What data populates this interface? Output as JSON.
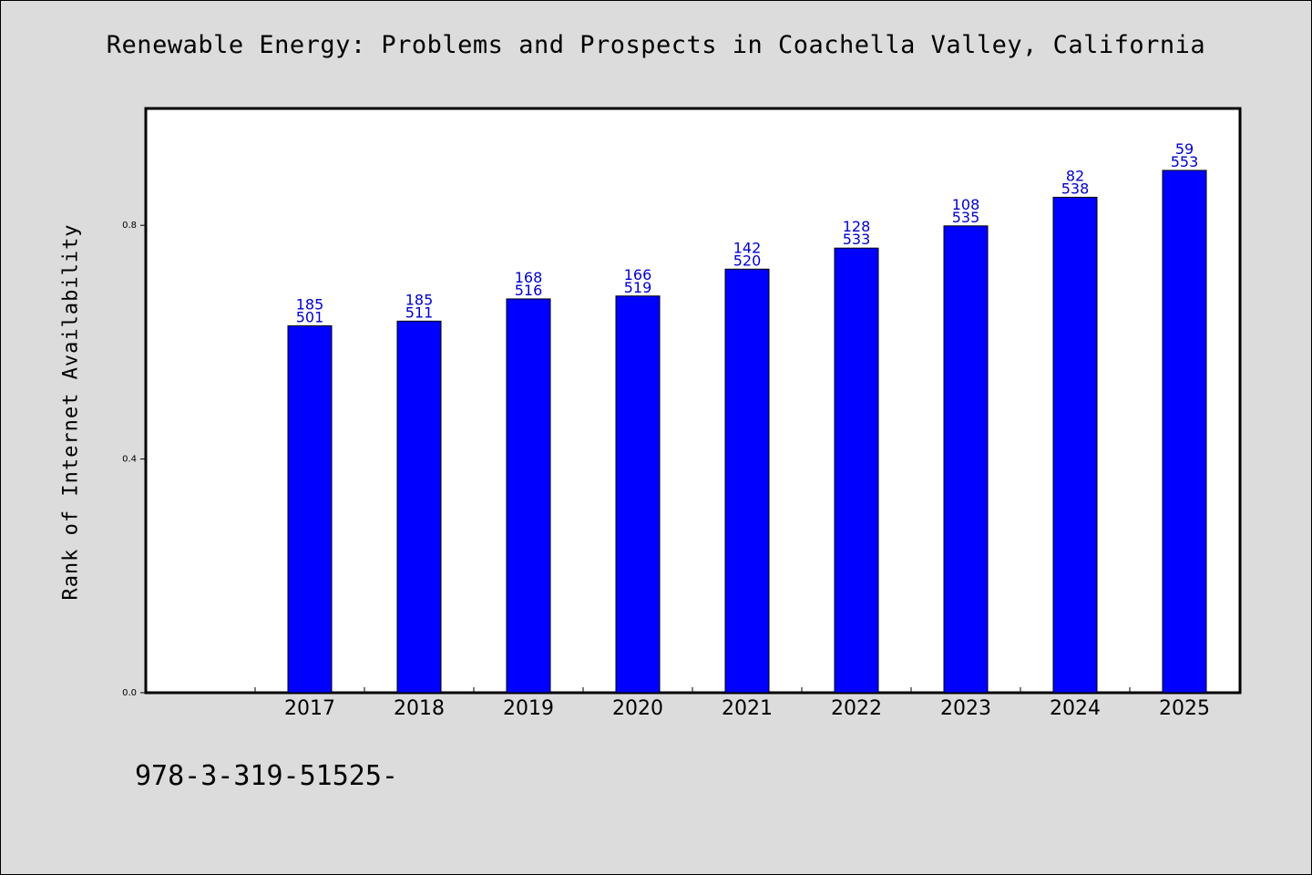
{
  "page_title": "Renewable Energy: Problems and Prospects in Coachella Valley, California",
  "footer_text": "978-3-319-51525-",
  "chart_data": {
    "type": "bar",
    "title": "Renewable Energy: Problems and Prospects in Coachella Valley, California",
    "xlabel": "",
    "ylabel": "Rank of Internet Availability",
    "categories": [
      "2017",
      "2018",
      "2019",
      "2020",
      "2021",
      "2022",
      "2023",
      "2024",
      "2025"
    ],
    "values": [
      0.628,
      0.636,
      0.674,
      0.679,
      0.725,
      0.761,
      0.799,
      0.848,
      0.894
    ],
    "data_labels_top": [
      "185",
      "185",
      "168",
      "166",
      "142",
      "128",
      "108",
      "82",
      "59"
    ],
    "data_labels_bottom": [
      "501",
      "511",
      "516",
      "519",
      "520",
      "533",
      "535",
      "538",
      "553"
    ],
    "ylim": [
      0,
      1.0
    ],
    "yticks": [
      0.0,
      0.4,
      0.8
    ],
    "ytick_labels": [
      "0.0",
      "0.4",
      "0.8"
    ],
    "bar_color": "#0000ff",
    "label_color": "#0000cc",
    "grid": false,
    "legend": "none"
  }
}
